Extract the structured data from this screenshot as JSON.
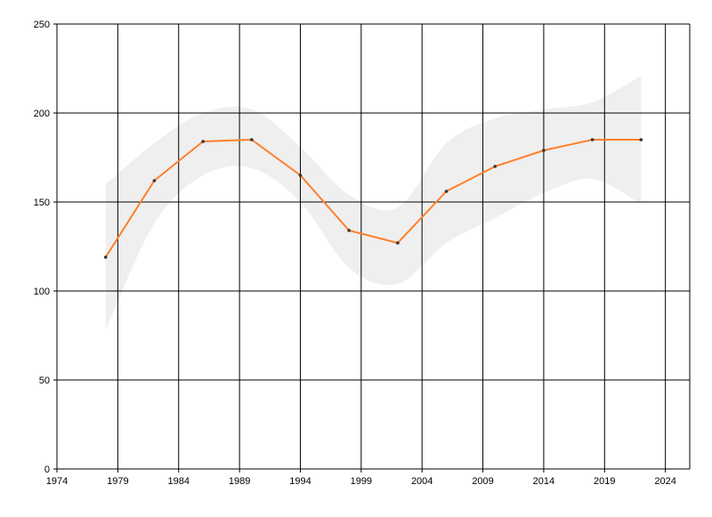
{
  "chart_data": {
    "type": "line",
    "x": [
      1978,
      1982,
      1986,
      1990,
      1994,
      1998,
      2002,
      2006,
      2010,
      2014,
      2018,
      2022
    ],
    "series": [
      {
        "color": "#ff7f2a",
        "values": [
          119,
          162,
          184,
          185,
          165,
          134,
          127,
          156,
          170,
          179,
          185,
          185
        ]
      }
    ],
    "band": {
      "color": "#efefef",
      "lower": [
        78,
        138,
        165,
        169,
        150,
        113,
        104,
        127,
        141,
        155,
        163,
        149
      ],
      "upper": [
        160,
        183,
        200,
        202,
        181,
        154,
        147,
        183,
        197,
        202,
        206,
        221
      ]
    },
    "xlim": [
      1974,
      2026
    ],
    "xticks": [
      1974,
      1979,
      1984,
      1989,
      1994,
      1999,
      2004,
      2009,
      2014,
      2019,
      2024
    ],
    "ylim": [
      0,
      250
    ],
    "yticks": [
      0,
      50,
      100,
      150,
      200,
      250
    ],
    "grid": true
  }
}
